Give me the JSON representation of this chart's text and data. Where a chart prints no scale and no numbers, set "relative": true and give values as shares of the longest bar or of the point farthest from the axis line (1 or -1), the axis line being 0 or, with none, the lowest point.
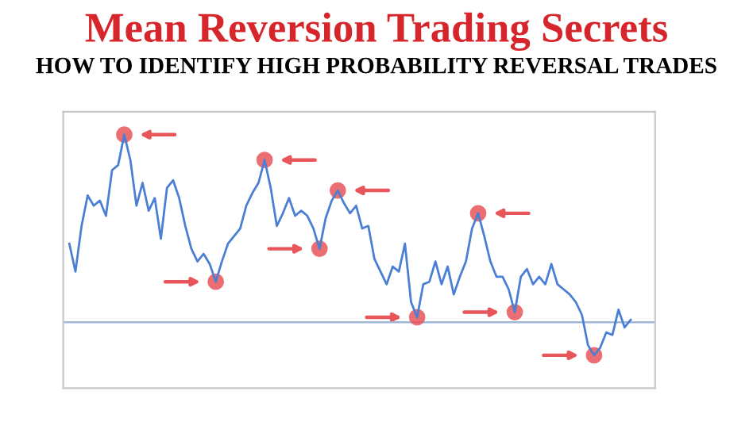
{
  "chart_data": {
    "type": "line",
    "title": "Mean Reversion Trading Secrets",
    "subtitle": "HOW TO IDENTIFY HIGH PROBABILITY REVERSAL TRADES",
    "relative": true,
    "categories": [
      null,
      null,
      null,
      null,
      null,
      null,
      null,
      null,
      null,
      null,
      null,
      null,
      null,
      null,
      null,
      null,
      null,
      null,
      null,
      null,
      null,
      null,
      null,
      null,
      null,
      null,
      null,
      null,
      null,
      null,
      null,
      null,
      null,
      null,
      null,
      null,
      null,
      null,
      null,
      null,
      null,
      null,
      null,
      null,
      null,
      null,
      null,
      null,
      null,
      null,
      null,
      null,
      null,
      null,
      null,
      null,
      null,
      null,
      null,
      null,
      null,
      null,
      null,
      null,
      null,
      null,
      null,
      null,
      null,
      null,
      null,
      null,
      null,
      null,
      null,
      null,
      null,
      null,
      null,
      null,
      null,
      null,
      null,
      null,
      null,
      null,
      null,
      null,
      null,
      null,
      null,
      null,
      null
    ],
    "series": [
      {
        "color": "#4a7fd4",
        "values": [
          0.57,
          0.46,
          0.64,
          0.76,
          0.72,
          0.74,
          0.68,
          0.86,
          0.88,
          1.0,
          0.9,
          0.72,
          0.81,
          0.7,
          0.75,
          0.59,
          0.79,
          0.82,
          0.75,
          0.64,
          0.55,
          0.5,
          0.53,
          0.49,
          0.42,
          0.5,
          0.57,
          0.6,
          0.63,
          0.72,
          0.77,
          0.81,
          0.9,
          0.79,
          0.64,
          0.69,
          0.75,
          0.68,
          0.7,
          0.68,
          0.63,
          0.55,
          0.67,
          0.74,
          0.78,
          0.73,
          0.69,
          0.72,
          0.63,
          0.64,
          0.51,
          0.46,
          0.41,
          0.48,
          0.46,
          0.57,
          0.34,
          0.28,
          0.41,
          0.42,
          0.5,
          0.41,
          0.48,
          0.37,
          0.44,
          0.5,
          0.63,
          0.69,
          0.6,
          0.5,
          0.44,
          0.44,
          0.39,
          0.3,
          0.44,
          0.47,
          0.41,
          0.44,
          0.41,
          0.49,
          0.41,
          0.39,
          0.37,
          0.34,
          0.29,
          0.17,
          0.13,
          0.16,
          0.22,
          0.21,
          0.31,
          0.24,
          0.27
        ]
      }
    ],
    "ref_lines": [
      {
        "axis": "y",
        "value": 0.26,
        "color": "#9fb8d8",
        "line_style": "solid"
      }
    ],
    "marker": "none",
    "line_style": "solid",
    "grid": false,
    "legend": false
  }
}
